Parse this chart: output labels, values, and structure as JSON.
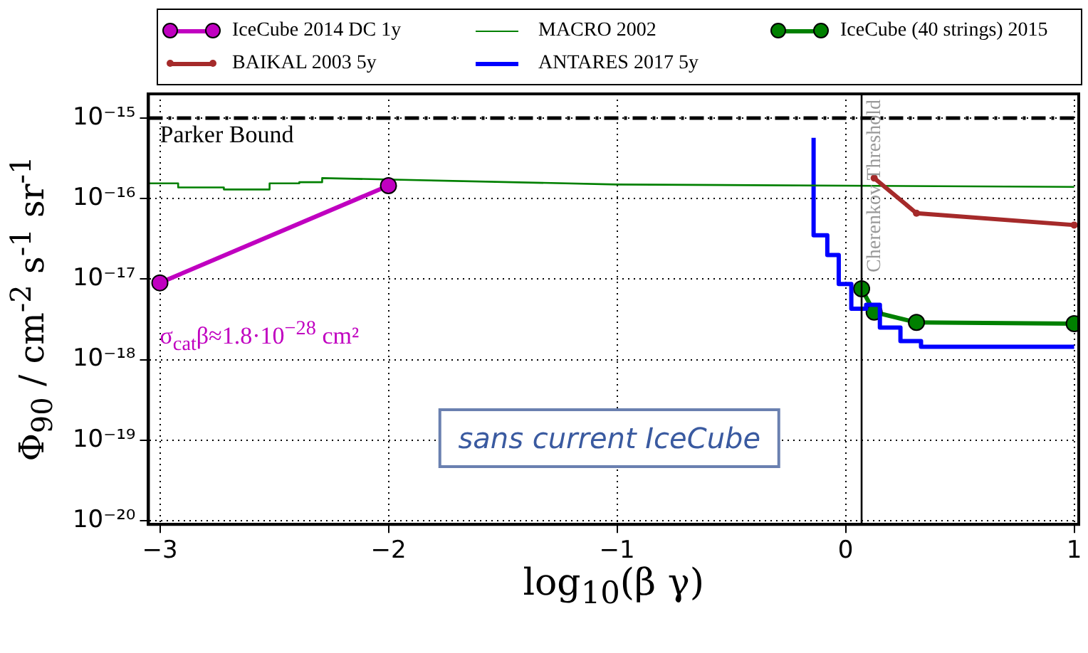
{
  "chart_data": {
    "type": "line",
    "xlabel": "log$_{10}$(β γ)",
    "ylabel": "Φ$_{90}$ / cm$^{-2}$ s$^{-1}$ sr$^{-1}$",
    "log": "y",
    "xlim": [
      -3.05,
      1.02
    ],
    "ylim": [
      9e-21,
      2e-15
    ],
    "xticks": [
      -3,
      -2,
      -1,
      0,
      1
    ],
    "yticks": [
      {
        "value": 1e-15,
        "label": "10⁻¹⁵"
      },
      {
        "value": 1e-16,
        "label": "10⁻¹⁶"
      },
      {
        "value": 1e-17,
        "label": "10⁻¹⁷"
      },
      {
        "value": 1e-18,
        "label": "10⁻¹⁸"
      },
      {
        "value": 1e-19,
        "label": "10⁻¹⁹"
      },
      {
        "value": 1e-20,
        "label": "10⁻²⁰"
      }
    ],
    "grid": true,
    "legend": "top",
    "line_style": "solid",
    "series": [
      {
        "name": "IceCube 2014 DC 1y",
        "marker": "circle",
        "color": "#c000c0",
        "x": [
          -3,
          -2
        ],
        "values": [
          9e-18,
          1.45e-16
        ]
      },
      {
        "name": "BAIKAL 2003 5y",
        "marker": "dot",
        "color": "#a52a2a",
        "x": [
          0.125,
          0.31,
          1.0
        ],
        "values": [
          1.8e-16,
          6.6e-17,
          4.7e-17
        ]
      },
      {
        "name": "MACRO 2002",
        "marker": "none",
        "color": "#008000",
        "x": [
          -3.05,
          -2.92,
          -2.92,
          -2.72,
          -2.72,
          -2.52,
          -2.52,
          -2.39,
          -2.39,
          -2.29,
          -2.29,
          -1,
          1
        ],
        "values": [
          1.55e-16,
          1.55e-16,
          1.38e-16,
          1.38e-16,
          1.3e-16,
          1.3e-16,
          1.55e-16,
          1.55e-16,
          1.6e-16,
          1.6e-16,
          1.8e-16,
          1.5e-16,
          1.4e-16
        ]
      },
      {
        "name": "ANTARES 2017 5y",
        "type": "step",
        "marker": "none",
        "color": "#0000ff",
        "x": [
          -0.14,
          -0.08,
          -0.03,
          0.025,
          0.09,
          0.15,
          0.24,
          0.33,
          0.49,
          1.0
        ],
        "values": [
          5.7e-16,
          3.5e-17,
          2e-17,
          8.7e-18,
          4.3e-18,
          4.8e-18,
          2.5e-18,
          1.7e-18,
          1.45e-18,
          1.45e-18
        ]
      },
      {
        "name": "IceCube (40 strings) 2015",
        "marker": "circle",
        "color": "#008000",
        "x": [
          0.07,
          0.125,
          0.31,
          1.0
        ],
        "values": [
          7.6e-18,
          3.9e-18,
          2.9e-18,
          2.8e-18
        ]
      }
    ],
    "ref_lines": [
      {
        "axis": "y",
        "value": 1e-15,
        "label": "Parker Bound",
        "color": "#000000",
        "line_style": "dashdot"
      },
      {
        "axis": "x",
        "value": 0.07,
        "label": "Cherenkov Threshold",
        "color": "#000000",
        "line_style": "solid"
      }
    ],
    "annotations": [
      "σ$_{cat}$β≈1.8·10$^{−28}$ cm²",
      "sans current IceCube"
    ]
  }
}
